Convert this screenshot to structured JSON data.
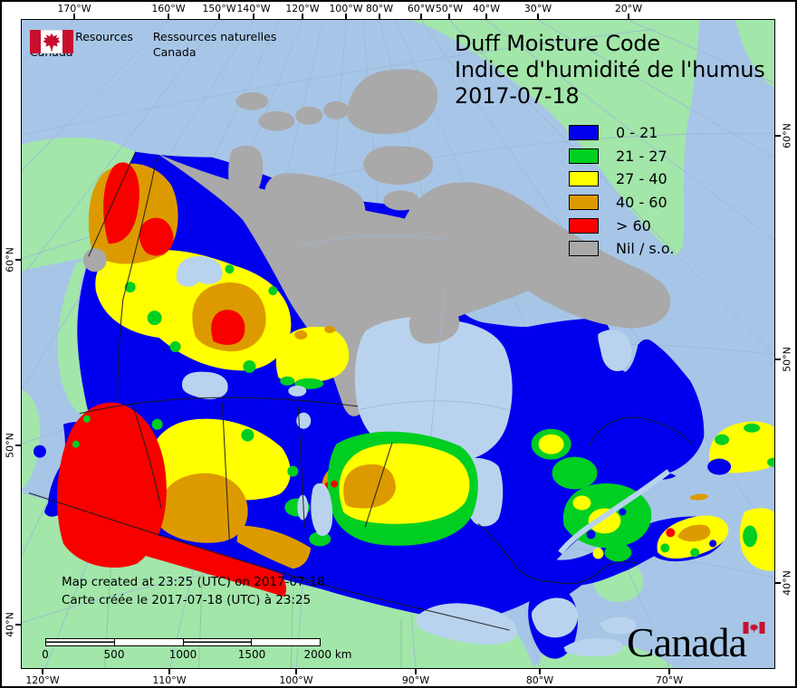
{
  "palette": {
    "ocean": "#a7c6e7",
    "foreign_land": "#a2e6aa",
    "foreign_border": "#85c794",
    "water": "#b9d3ee",
    "nil_gray": "#a9a9a9",
    "dmc_blue": "#0000ee",
    "dmc_green": "#00cf22",
    "dmc_yellow": "#ffff00",
    "dmc_orange": "#dd9a00",
    "dmc_red": "#f80000",
    "graticule": "#9db6d6",
    "boundary": "#1a1a1a",
    "flag_red": "#c8102e"
  },
  "header": {
    "department_en_line1": "Natural Resources",
    "department_en_line2": "Canada",
    "department_fr_line1": "Ressources naturelles",
    "department_fr_line2": "Canada"
  },
  "title": {
    "line1": "Duff Moisture Code",
    "line2": "Indice d'humidité de l'humus",
    "date": "2017-07-18"
  },
  "legend": {
    "items": [
      {
        "label": "0 - 21",
        "color": "dmc_blue"
      },
      {
        "label": "21 - 27",
        "color": "dmc_green"
      },
      {
        "label": "27 - 40",
        "color": "dmc_yellow"
      },
      {
        "label": "40 - 60",
        "color": "dmc_orange"
      },
      {
        "label": "> 60",
        "color": "dmc_red"
      },
      {
        "label": "Nil / s.o.",
        "color": "nil_gray"
      }
    ]
  },
  "notes": {
    "line1": "Map created at 23:25 (UTC) on 2017-07-18",
    "line2": "Carte créée le 2017-07-18 (UTC) à 23:25"
  },
  "scalebar": {
    "labels": [
      "0",
      "500",
      "1000",
      "1500"
    ],
    "end_label": "2000 km"
  },
  "wordmark": {
    "text": "Canada"
  },
  "axes": {
    "top": [
      "170°W",
      "160°W",
      "150°W",
      "140°W",
      "120°W",
      "100°W",
      "80°W",
      "60°W",
      "50°W",
      "40°W",
      "30°W",
      "20°W"
    ],
    "bottom": [
      "120°W",
      "110°W",
      "100°W",
      "90°W",
      "80°W",
      "70°W"
    ],
    "left": [
      "60°N",
      "50°N",
      "40°N"
    ],
    "right": [
      "60°N",
      "50°N",
      "40°N"
    ]
  }
}
